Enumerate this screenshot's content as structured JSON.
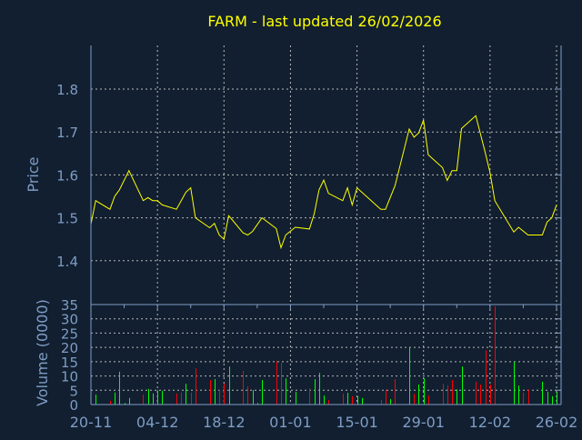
{
  "chart_data": [
    {
      "type": "line",
      "title": "FARM - last updated 26/02/2026",
      "ylabel": "Price",
      "xlabel": "",
      "ylim": [
        1.3,
        1.9
      ],
      "yticks": [
        "1.4",
        "1.5",
        "1.6",
        "1.7",
        "1.8"
      ],
      "xlim": [
        "2025-11-20",
        "2026-02-26"
      ],
      "xticks": [
        {
          "date": "2025-11-20",
          "label": "20-11"
        },
        {
          "date": "2025-12-04",
          "label": "04-12"
        },
        {
          "date": "2025-12-18",
          "label": "18-12"
        },
        {
          "date": "2026-01-01",
          "label": "01-01"
        },
        {
          "date": "2026-01-15",
          "label": "15-01"
        },
        {
          "date": "2026-01-29",
          "label": "29-01"
        },
        {
          "date": "2026-02-12",
          "label": "12-02"
        },
        {
          "date": "2026-02-26",
          "label": "26-02"
        }
      ],
      "grid": true,
      "line_color": "#ffff00",
      "points": [
        [
          "2025-11-20",
          1.485
        ],
        [
          "2025-11-21",
          1.54
        ],
        [
          "2025-11-24",
          1.52
        ],
        [
          "2025-11-25",
          1.55
        ],
        [
          "2025-11-26",
          1.565
        ],
        [
          "2025-11-28",
          1.61
        ],
        [
          "2025-12-01",
          1.54
        ],
        [
          "2025-12-02",
          1.547
        ],
        [
          "2025-12-03",
          1.54
        ],
        [
          "2025-12-04",
          1.54
        ],
        [
          "2025-12-05",
          1.53
        ],
        [
          "2025-12-08",
          1.52
        ],
        [
          "2025-12-09",
          1.54
        ],
        [
          "2025-12-10",
          1.56
        ],
        [
          "2025-12-11",
          1.57
        ],
        [
          "2025-12-12",
          1.5
        ],
        [
          "2025-12-15",
          1.477
        ],
        [
          "2025-12-16",
          1.487
        ],
        [
          "2025-12-17",
          1.46
        ],
        [
          "2025-12-18",
          1.45
        ],
        [
          "2025-12-19",
          1.505
        ],
        [
          "2025-12-22",
          1.465
        ],
        [
          "2025-12-23",
          1.46
        ],
        [
          "2025-12-24",
          1.468
        ],
        [
          "2025-12-26",
          1.5
        ],
        [
          "2025-12-29",
          1.475
        ],
        [
          "2025-12-30",
          1.43
        ],
        [
          "2025-12-31",
          1.46
        ],
        [
          "2026-01-02",
          1.478
        ],
        [
          "2026-01-05",
          1.474
        ],
        [
          "2026-01-06",
          1.51
        ],
        [
          "2026-01-07",
          1.565
        ],
        [
          "2026-01-08",
          1.588
        ],
        [
          "2026-01-09",
          1.557
        ],
        [
          "2026-01-12",
          1.54
        ],
        [
          "2026-01-13",
          1.57
        ],
        [
          "2026-01-14",
          1.53
        ],
        [
          "2026-01-15",
          1.57
        ],
        [
          "2026-01-20",
          1.52
        ],
        [
          "2026-01-21",
          1.52
        ],
        [
          "2026-01-23",
          1.575
        ],
        [
          "2026-01-26",
          1.707
        ],
        [
          "2026-01-27",
          1.688
        ],
        [
          "2026-01-28",
          1.698
        ],
        [
          "2026-01-29",
          1.728
        ],
        [
          "2026-01-30",
          1.647
        ],
        [
          "2026-02-02",
          1.617
        ],
        [
          "2026-02-03",
          1.587
        ],
        [
          "2026-02-04",
          1.61
        ],
        [
          "2026-02-05",
          1.61
        ],
        [
          "2026-02-06",
          1.708
        ],
        [
          "2026-02-09",
          1.738
        ],
        [
          "2026-02-11",
          1.652
        ],
        [
          "2026-02-12",
          1.605
        ],
        [
          "2026-02-13",
          1.54
        ],
        [
          "2026-02-17",
          1.467
        ],
        [
          "2026-02-18",
          1.478
        ],
        [
          "2026-02-20",
          1.46
        ],
        [
          "2026-02-23",
          1.46
        ],
        [
          "2026-02-24",
          1.49
        ],
        [
          "2026-02-25",
          1.5
        ],
        [
          "2026-02-26",
          1.53
        ]
      ]
    },
    {
      "type": "bar",
      "ylabel": "Volume (0000)",
      "ylim": [
        0,
        35
      ],
      "yticks": [
        "0",
        "5",
        "10",
        "15",
        "20",
        "25",
        "30",
        "35"
      ],
      "grid": true,
      "colors": {
        "up": "#00ff00",
        "down": "#ff0000"
      },
      "bars": [
        [
          "2025-11-21",
          3.5,
          "up"
        ],
        [
          "2025-11-24",
          1.3,
          "down"
        ],
        [
          "2025-11-25",
          4.2,
          "up"
        ],
        [
          "2025-11-26",
          11.5,
          "up"
        ],
        [
          "2025-11-27",
          0.5,
          "up"
        ],
        [
          "2025-11-28",
          2.3,
          "up"
        ],
        [
          "2025-12-01",
          3.5,
          "down"
        ],
        [
          "2025-12-02",
          5.5,
          "up"
        ],
        [
          "2025-12-03",
          3.9,
          "up"
        ],
        [
          "2025-12-04",
          5,
          "up"
        ],
        [
          "2025-12-05",
          4.8,
          "up"
        ],
        [
          "2025-12-08",
          3.9,
          "down"
        ],
        [
          "2025-12-09",
          4.2,
          "down"
        ],
        [
          "2025-12-10",
          7.3,
          "up"
        ],
        [
          "2025-12-11",
          4.2,
          "down"
        ],
        [
          "2025-12-12",
          12.7,
          "down"
        ],
        [
          "2025-12-15",
          8.6,
          "down"
        ],
        [
          "2025-12-16",
          8.9,
          "up"
        ],
        [
          "2025-12-17",
          5.3,
          "down"
        ],
        [
          "2025-12-18",
          7.3,
          "down"
        ],
        [
          "2025-12-19",
          13.3,
          "up"
        ],
        [
          "2025-12-22",
          11.8,
          "down"
        ],
        [
          "2025-12-23",
          6.4,
          "down"
        ],
        [
          "2025-12-24",
          5.1,
          "up"
        ],
        [
          "2025-12-25",
          0.5,
          "up"
        ],
        [
          "2025-12-26",
          8.6,
          "up"
        ],
        [
          "2025-12-29",
          15.2,
          "down"
        ],
        [
          "2025-12-30",
          14.6,
          "down"
        ],
        [
          "2025-12-31",
          9.2,
          "up"
        ],
        [
          "2026-01-02",
          4.4,
          "up"
        ],
        [
          "2026-01-05",
          5.7,
          "down"
        ],
        [
          "2026-01-06",
          8.9,
          "up"
        ],
        [
          "2026-01-07",
          11.1,
          "up"
        ],
        [
          "2026-01-08",
          3.2,
          "up"
        ],
        [
          "2026-01-09",
          1.6,
          "down"
        ],
        [
          "2026-01-12",
          3.8,
          "down"
        ],
        [
          "2026-01-13",
          4.1,
          "up"
        ],
        [
          "2026-01-14",
          2.9,
          "down"
        ],
        [
          "2026-01-15",
          2.9,
          "up"
        ],
        [
          "2026-01-16",
          2.3,
          "up"
        ],
        [
          "2026-01-20",
          1.6,
          "down"
        ],
        [
          "2026-01-21",
          5.2,
          "down"
        ],
        [
          "2026-01-22",
          1.9,
          "up"
        ],
        [
          "2026-01-23",
          8.9,
          "down"
        ],
        [
          "2026-01-26",
          20,
          "up"
        ],
        [
          "2026-01-27",
          3.8,
          "down"
        ],
        [
          "2026-01-28",
          7,
          "up"
        ],
        [
          "2026-01-29",
          9.2,
          "up"
        ],
        [
          "2026-01-30",
          3.2,
          "down"
        ],
        [
          "2026-02-02",
          7.3,
          "down"
        ],
        [
          "2026-02-03",
          6.7,
          "down"
        ],
        [
          "2026-02-04",
          8.6,
          "down"
        ],
        [
          "2026-02-05",
          5.3,
          "up"
        ],
        [
          "2026-02-06",
          13.3,
          "up"
        ],
        [
          "2026-02-09",
          8,
          "down"
        ],
        [
          "2026-02-10",
          7,
          "down"
        ],
        [
          "2026-02-11",
          19,
          "down"
        ],
        [
          "2026-02-12",
          7,
          "down"
        ],
        [
          "2026-02-13",
          34.4,
          "down"
        ],
        [
          "2026-02-17",
          15,
          "up"
        ],
        [
          "2026-02-18",
          6.7,
          "up"
        ],
        [
          "2026-02-19",
          4.2,
          "down"
        ],
        [
          "2026-02-20",
          5.3,
          "down"
        ],
        [
          "2026-02-23",
          8,
          "up"
        ],
        [
          "2026-02-24",
          4.5,
          "up"
        ],
        [
          "2026-02-25",
          2.9,
          "up"
        ],
        [
          "2026-02-26",
          4.5,
          "up"
        ]
      ]
    }
  ]
}
